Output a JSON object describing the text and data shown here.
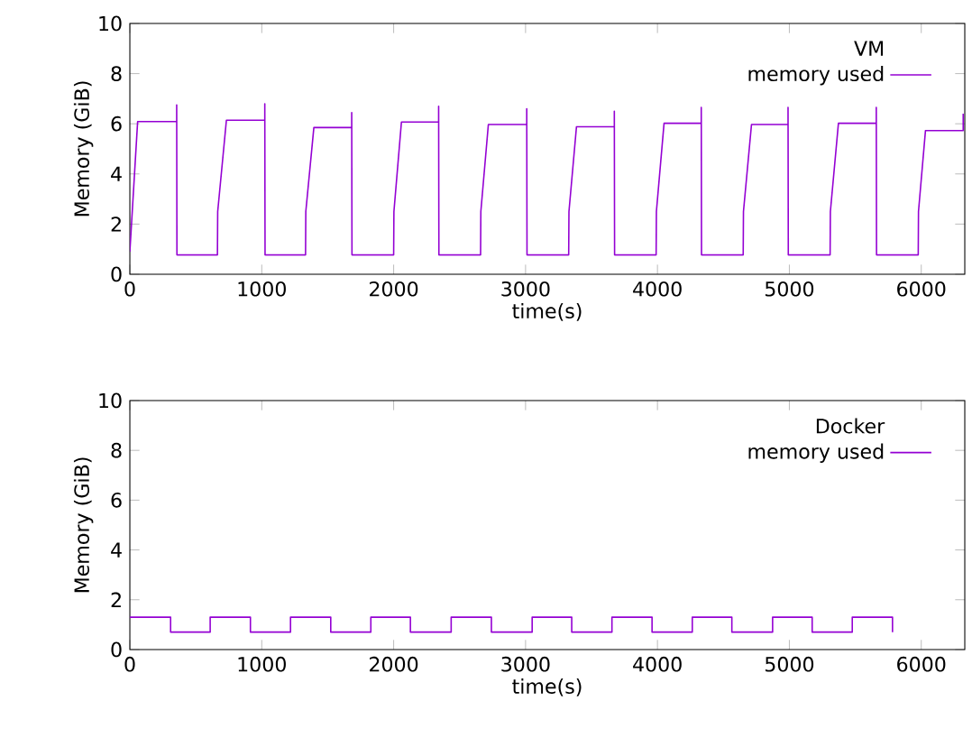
{
  "chart_data": [
    {
      "type": "line",
      "xlabel": "time(s)",
      "ylabel": "Memory (GiB)",
      "legend_title": "VM",
      "legend": "top right",
      "xlim": [
        0,
        6330
      ],
      "ylim": [
        0,
        10
      ],
      "xticks": [
        0,
        1000,
        2000,
        3000,
        4000,
        5000,
        6000
      ],
      "yticks": [
        0,
        2,
        4,
        6,
        8,
        10
      ],
      "series": [
        {
          "name": "memory used",
          "color": "#9400d3",
          "x": [
            0,
            59,
            355,
            355,
            357,
            664,
            666,
            732,
            1023,
            1023,
            1025,
            1332,
            1334,
            1395,
            1682,
            1682,
            1684,
            2000,
            2002,
            2059,
            2341,
            2341,
            2343,
            2659,
            2661,
            2718,
            3009,
            3009,
            3011,
            3327,
            3329,
            3386,
            3673,
            3673,
            3675,
            3990,
            3992,
            4050,
            4332,
            4332,
            4334,
            4650,
            4652,
            4713,
            4990,
            4990,
            4992,
            5309,
            5311,
            5372,
            5659,
            5659,
            5661,
            5977,
            5979,
            6032,
            6318,
            6318
          ],
          "values": [
            0.9,
            6.09,
            6.09,
            6.75,
            0.77,
            0.77,
            2.5,
            6.14,
            6.14,
            6.8,
            0.77,
            0.77,
            2.5,
            5.85,
            5.85,
            6.45,
            0.77,
            0.77,
            2.5,
            6.07,
            6.07,
            6.7,
            0.77,
            0.77,
            2.5,
            5.97,
            5.97,
            6.6,
            0.77,
            0.77,
            2.5,
            5.88,
            5.88,
            6.5,
            0.77,
            0.77,
            2.5,
            6.02,
            6.02,
            6.65,
            0.77,
            0.77,
            2.5,
            5.97,
            5.97,
            6.65,
            0.77,
            0.77,
            2.5,
            6.02,
            6.02,
            6.65,
            0.77,
            0.77,
            2.5,
            5.73,
            5.73,
            6.4
          ]
        }
      ]
    },
    {
      "type": "line",
      "xlabel": "time(s)",
      "ylabel": "Memory (GiB)",
      "legend_title": "Docker",
      "legend": "top right",
      "xlim": [
        0,
        6330
      ],
      "ylim": [
        0,
        10
      ],
      "xticks": [
        0,
        1000,
        2000,
        3000,
        4000,
        5000,
        6000
      ],
      "yticks": [
        0,
        2,
        4,
        6,
        8,
        10
      ],
      "series": [
        {
          "name": "memory used",
          "color": "#9400d3",
          "x": [
            0,
            309,
            309,
            609,
            609,
            914,
            914,
            1218,
            1218,
            1523,
            1523,
            1827,
            1827,
            2127,
            2127,
            2436,
            2436,
            2741,
            2741,
            3050,
            3050,
            3350,
            3350,
            3655,
            3655,
            3959,
            3959,
            4264,
            4264,
            4564,
            4564,
            4873,
            4873,
            5173,
            5173,
            5477,
            5477,
            5782,
            5782
          ],
          "values": [
            1.3,
            1.3,
            0.7,
            0.7,
            1.3,
            1.3,
            0.7,
            0.7,
            1.3,
            1.3,
            0.7,
            0.7,
            1.3,
            1.3,
            0.7,
            0.7,
            1.3,
            1.3,
            0.7,
            0.7,
            1.3,
            1.3,
            0.7,
            0.7,
            1.3,
            1.3,
            0.7,
            0.7,
            1.3,
            1.3,
            0.7,
            0.7,
            1.3,
            1.3,
            0.7,
            0.7,
            1.3,
            1.3,
            0.7
          ]
        }
      ]
    }
  ]
}
